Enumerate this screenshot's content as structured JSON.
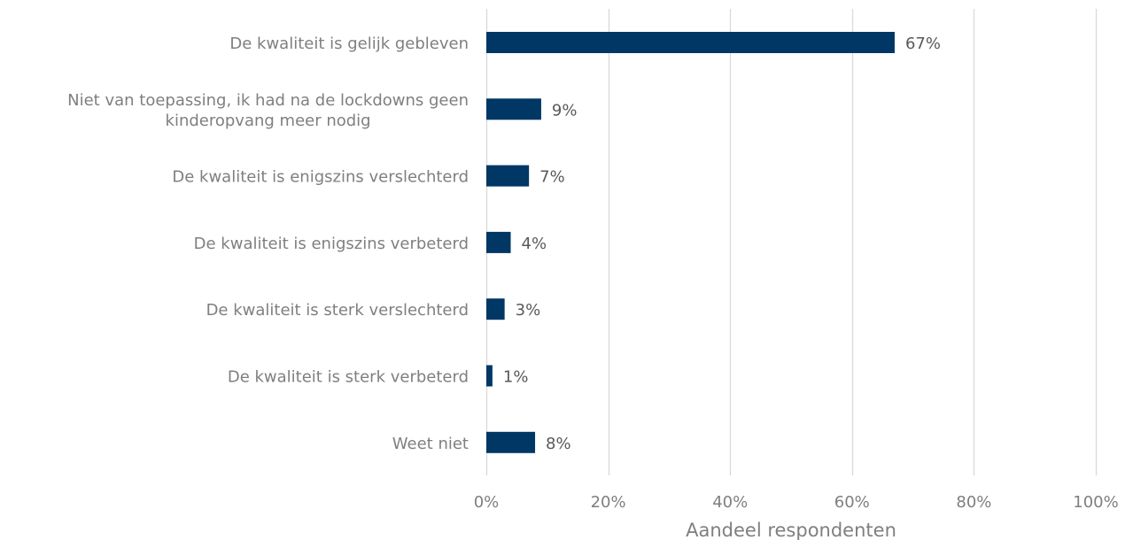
{
  "chart_data": {
    "type": "bar",
    "orientation": "horizontal",
    "categories": [
      [
        "De kwaliteit is gelijk gebleven"
      ],
      [
        "Niet van toepassing, ik had na de lockdowns geen",
        "kinderopvang meer nodig"
      ],
      [
        "De kwaliteit is enigszins verslechterd"
      ],
      [
        "De kwaliteit is enigszins verbeterd"
      ],
      [
        "De kwaliteit is sterk verslechterd"
      ],
      [
        "De kwaliteit is sterk verbeterd"
      ],
      [
        "Weet niet"
      ]
    ],
    "values": [
      67,
      9,
      7,
      4,
      3,
      1,
      8
    ],
    "data_labels": [
      "67%",
      "9%",
      "7%",
      "4%",
      "3%",
      "1%",
      "8%"
    ],
    "x_ticks": [
      "0%",
      "20%",
      "40%",
      "60%",
      "80%",
      "100%"
    ],
    "xlim": [
      0,
      100
    ],
    "xlabel": "Aandeel respondenten",
    "grid": true,
    "colors": {
      "bar": "#003764",
      "grid": "#d9d9d9"
    }
  }
}
